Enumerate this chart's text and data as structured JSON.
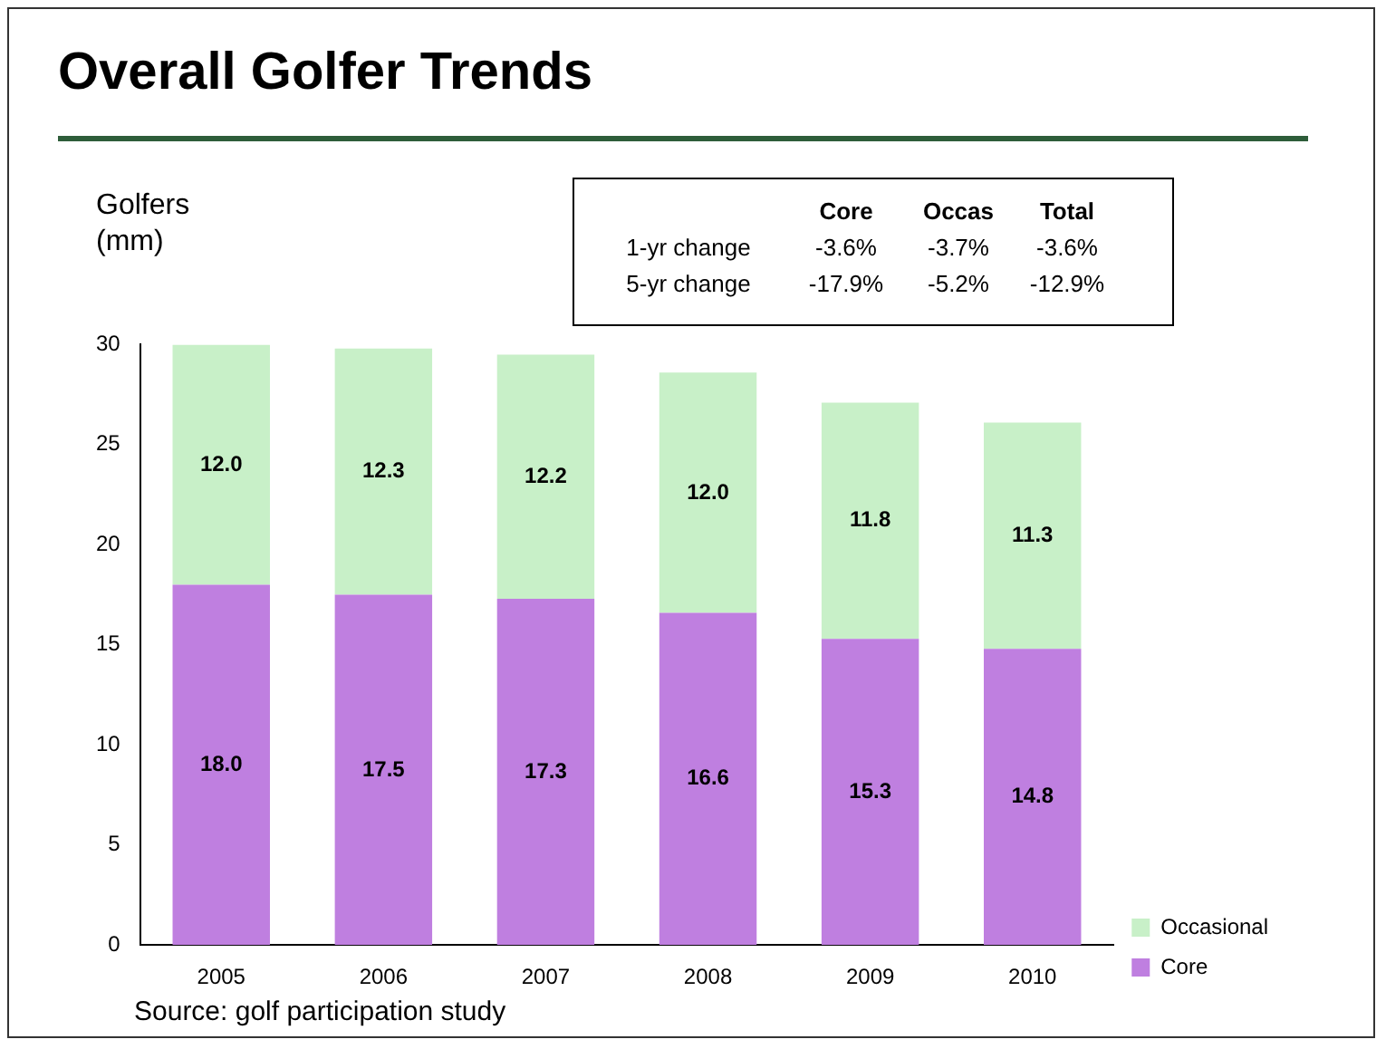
{
  "chart_data": {
    "type": "bar",
    "title": "Overall Golfer Trends",
    "ylabel": "Golfers\n(mm)",
    "categories": [
      "2005",
      "2006",
      "2007",
      "2008",
      "2009",
      "2010"
    ],
    "stacked": true,
    "series": [
      {
        "name": "Core",
        "color": "#bf7fe0",
        "values": [
          18.0,
          17.5,
          17.3,
          16.6,
          15.3,
          14.8
        ],
        "value_labels": [
          "18.0",
          "17.5",
          "17.3",
          "16.6",
          "15.3",
          "14.8"
        ]
      },
      {
        "name": "Occasional",
        "color": "#c8f0c8",
        "values": [
          12.0,
          12.3,
          12.2,
          12.0,
          11.8,
          11.3
        ],
        "value_labels": [
          "12.0",
          "12.3",
          "12.2",
          "12.0",
          "11.8",
          "11.3"
        ]
      }
    ],
    "ylim": [
      0,
      30
    ],
    "yticks": [
      0,
      5,
      10,
      15,
      20,
      25,
      30
    ],
    "grid": false,
    "legend": "bottom right",
    "annotations": [
      "Source: golf participation study",
      "Core",
      "Occas",
      "Total",
      "1-yr change",
      "-3.6%",
      "-3.7%",
      "-3.6%",
      "5-yr change",
      "-17.9%",
      "-5.2%",
      "-12.9%"
    ]
  }
}
